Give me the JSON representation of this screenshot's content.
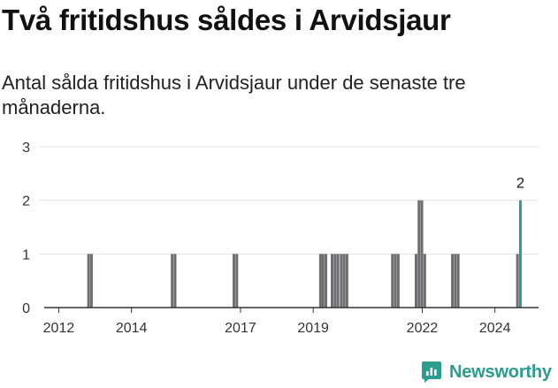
{
  "header": {
    "title": "Två fritidshus såldes i Arvidsjaur",
    "subtitle": "Antal sålda fritidshus i Arvidsjaur under de senaste tre månaderna."
  },
  "brand": {
    "name": "Newsworthy",
    "color": "#2a9d8f"
  },
  "chart_data": {
    "type": "bar",
    "title": "Två fritidshus såldes i Arvidsjaur",
    "subtitle": "Antal sålda fritidshus i Arvidsjaur under de senaste tre månaderna.",
    "xlabel": "",
    "ylabel": "",
    "ylim": [
      0,
      3
    ],
    "yticks": [
      0,
      1,
      2,
      3
    ],
    "xlim": [
      2011.6,
      2025.2
    ],
    "xticks": [
      2012,
      2014,
      2017,
      2019,
      2022,
      2024
    ],
    "grid": true,
    "bar_color": "#6e6e70",
    "highlight_color": "#2a9d8f",
    "series": [
      {
        "name": "Sålda fritidshus",
        "x": [
          2012.82,
          2012.9,
          2015.12,
          2015.2,
          2016.82,
          2016.9,
          2019.2,
          2019.27,
          2019.35,
          2019.52,
          2019.6,
          2019.68,
          2019.77,
          2019.85,
          2019.93,
          2021.18,
          2021.26,
          2021.34,
          2021.83,
          2021.91,
          2021.99,
          2022.07,
          2022.83,
          2022.91,
          2022.99,
          2024.62,
          2024.7
        ],
        "values": [
          1,
          1,
          1,
          1,
          1,
          1,
          1,
          1,
          1,
          1,
          1,
          1,
          1,
          1,
          1,
          1,
          1,
          1,
          1,
          2,
          2,
          1,
          1,
          1,
          1,
          1,
          2
        ]
      }
    ],
    "highlight": {
      "x": 2024.7,
      "value": 2,
      "label": "2"
    }
  }
}
